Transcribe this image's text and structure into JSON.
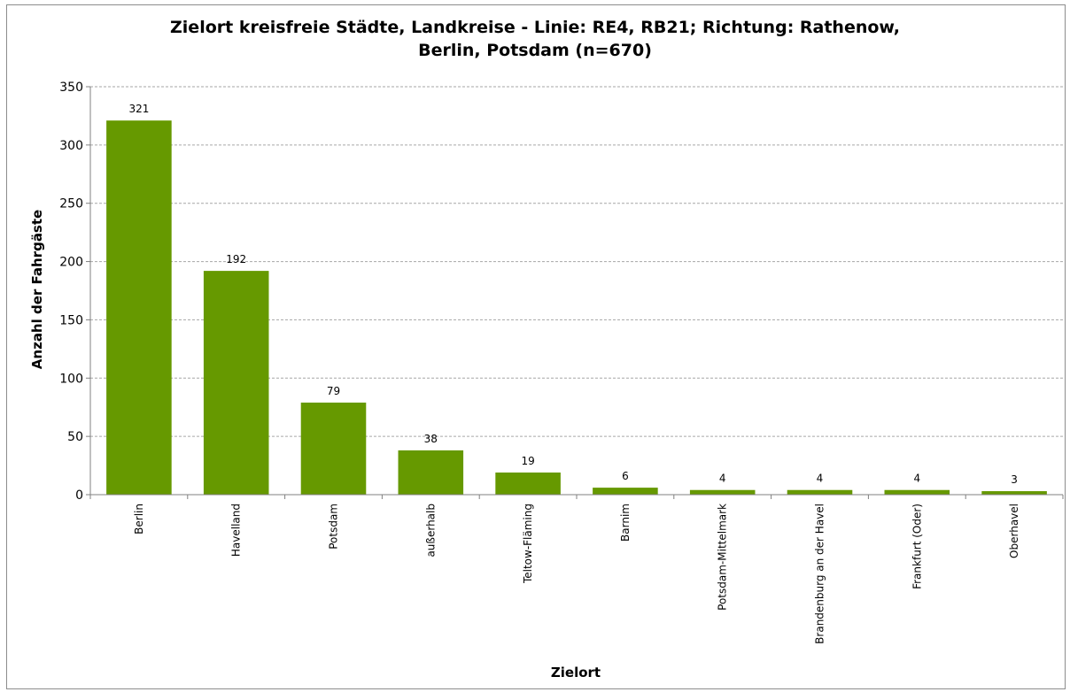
{
  "chart_data": {
    "type": "bar",
    "title": "Zielort kreisfreie Städte, Landkreise - Linie: RE4, RB21; Richtung: Rathenow,",
    "subtitle": "Berlin, Potsdam (n=670)",
    "xlabel": "Zielort",
    "ylabel": "Anzahl der Fahrgäste",
    "categories": [
      "Berlin",
      "Havelland",
      "Potsdam",
      "außerhalb",
      "Teltow-Fläming",
      "Barnim",
      "Potsdam-Mittelmark",
      "Brandenburg an der Havel",
      "Frankfurt (Oder)",
      "Oberhavel"
    ],
    "values": [
      321,
      192,
      79,
      38,
      19,
      6,
      4,
      4,
      4,
      3
    ],
    "ylim": [
      0,
      350
    ],
    "yticks": [
      0,
      50,
      100,
      150,
      200,
      250,
      300,
      350
    ],
    "grid": true,
    "legend": "none",
    "bar_color": "#669900",
    "grid_color": "#a6a6a6"
  }
}
